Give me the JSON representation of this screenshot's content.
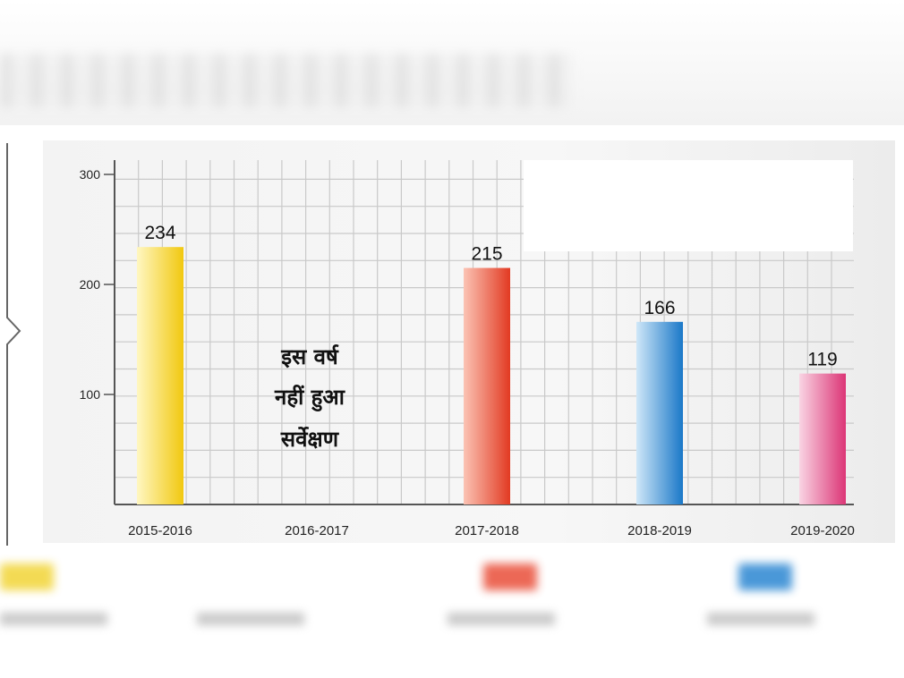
{
  "chart_data": {
    "type": "bar",
    "categories": [
      "2015-2016",
      "2016-2017",
      "2017-2018",
      "2018-2019",
      "2019-2020"
    ],
    "values": [
      234,
      null,
      215,
      166,
      119
    ],
    "data_labels": [
      "234",
      "",
      "215",
      "166",
      "119"
    ],
    "bar_colors": [
      "#f5d21f",
      null,
      "#e8432c",
      "#1e7fcf",
      "#e0407d"
    ],
    "ylim": [
      0,
      300
    ],
    "yticks": [
      100,
      200,
      300
    ],
    "ytick_labels": [
      "100",
      "200",
      "300"
    ],
    "grid": true,
    "annotation": [
      "इस वर्ष",
      "नहीं हुआ",
      "सर्वेक्षण"
    ]
  }
}
